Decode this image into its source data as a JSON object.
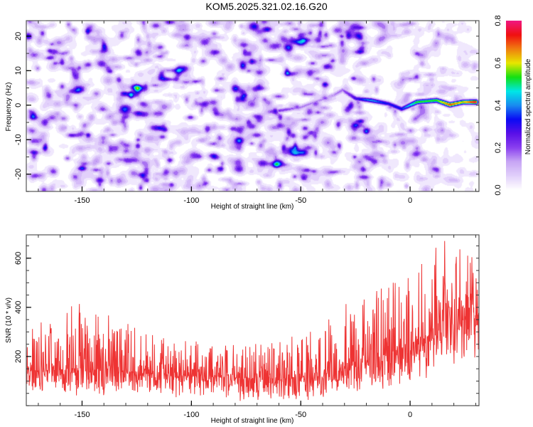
{
  "title": "KOM5.2025.321.02.16.G20",
  "chart_data": [
    {
      "type": "heatmap",
      "title": "KOM5.2025.321.02.16.G20",
      "xlabel": "Height of straight line (km)",
      "ylabel": "Frequency (Hz)",
      "xlim": [
        -175.5,
        31.5
      ],
      "ylim": [
        -25,
        24.5
      ],
      "xticks": [
        -150,
        -100,
        -50,
        0
      ],
      "xtick_labels": [
        "-150",
        "-100",
        "-50",
        "0"
      ],
      "yticks": [
        -20,
        -10,
        0,
        10,
        20
      ],
      "ytick_labels": [
        "-20",
        "-10",
        "0",
        "10",
        "20"
      ],
      "grid": false,
      "colorbar": {
        "label": "Normalized spectral amplitude",
        "range": [
          0.0,
          0.8
        ],
        "ticks": [
          0.0,
          0.2,
          0.4,
          0.6,
          0.8
        ],
        "tick_labels": [
          "0.0",
          "0.2",
          "0.4",
          "0.6",
          "0.8"
        ],
        "colors": [
          "#ffffff",
          "#e2d0fb",
          "#c8a6f5",
          "#8a3ff0",
          "#5a10e8",
          "#0b0bf5",
          "#1a8cf0",
          "#00e8e8",
          "#14e014",
          "#e8e800",
          "#f08010",
          "#f01010",
          "#f01880"
        ]
      },
      "background_noise_level": 0.12,
      "signal_track": {
        "description": "Coherent signal near 0-1 Hz rising in amplitude toward the right",
        "points": [
          {
            "x": -60,
            "freq": -1.5,
            "amp": 0.22
          },
          {
            "x": -50,
            "freq": -0.5,
            "amp": 0.16
          },
          {
            "x": -35,
            "freq": 3.0,
            "amp": 0.15
          },
          {
            "x": -31,
            "freq": 4.5,
            "amp": 0.18
          },
          {
            "x": -25,
            "freq": 2.0,
            "amp": 0.3
          },
          {
            "x": -18,
            "freq": 1.5,
            "amp": 0.42
          },
          {
            "x": -10,
            "freq": 0.5,
            "amp": 0.32
          },
          {
            "x": -4,
            "freq": -1.0,
            "amp": 0.35
          },
          {
            "x": 3,
            "freq": 1.0,
            "amp": 0.55
          },
          {
            "x": 12,
            "freq": 1.5,
            "amp": 0.55
          },
          {
            "x": 18,
            "freq": 0.2,
            "amp": 0.72
          },
          {
            "x": 24,
            "freq": 1.0,
            "amp": 0.62
          },
          {
            "x": 30,
            "freq": 1.0,
            "amp": 0.8
          }
        ]
      }
    },
    {
      "type": "line",
      "xlabel": "Height of straight line (km)",
      "ylabel": "SNR (10 * v/v)",
      "xlim": [
        -175.5,
        31.5
      ],
      "ylim": [
        0,
        695
      ],
      "xticks": [
        -150,
        -100,
        -50,
        0
      ],
      "xtick_labels": [
        "-150",
        "-100",
        "-50",
        "0"
      ],
      "yticks": [
        200,
        400,
        600
      ],
      "ytick_labels": [
        "200",
        "400",
        "600"
      ],
      "grid": false,
      "series": [
        {
          "name": "SNR",
          "color": "#ee3333",
          "trend_x": [
            -175,
            -150,
            -120,
            -90,
            -60,
            -40,
            -30,
            -20,
            -10,
            0,
            10,
            20,
            31
          ],
          "trend_mean": [
            140,
            150,
            130,
            115,
            110,
            120,
            150,
            180,
            210,
            250,
            290,
            330,
            370
          ],
          "trend_peak": [
            310,
            430,
            300,
            250,
            260,
            330,
            480,
            470,
            510,
            560,
            690,
            670,
            650
          ],
          "trend_min": [
            50,
            40,
            30,
            20,
            15,
            20,
            40,
            60,
            70,
            60,
            130,
            150,
            200
          ]
        }
      ]
    }
  ]
}
